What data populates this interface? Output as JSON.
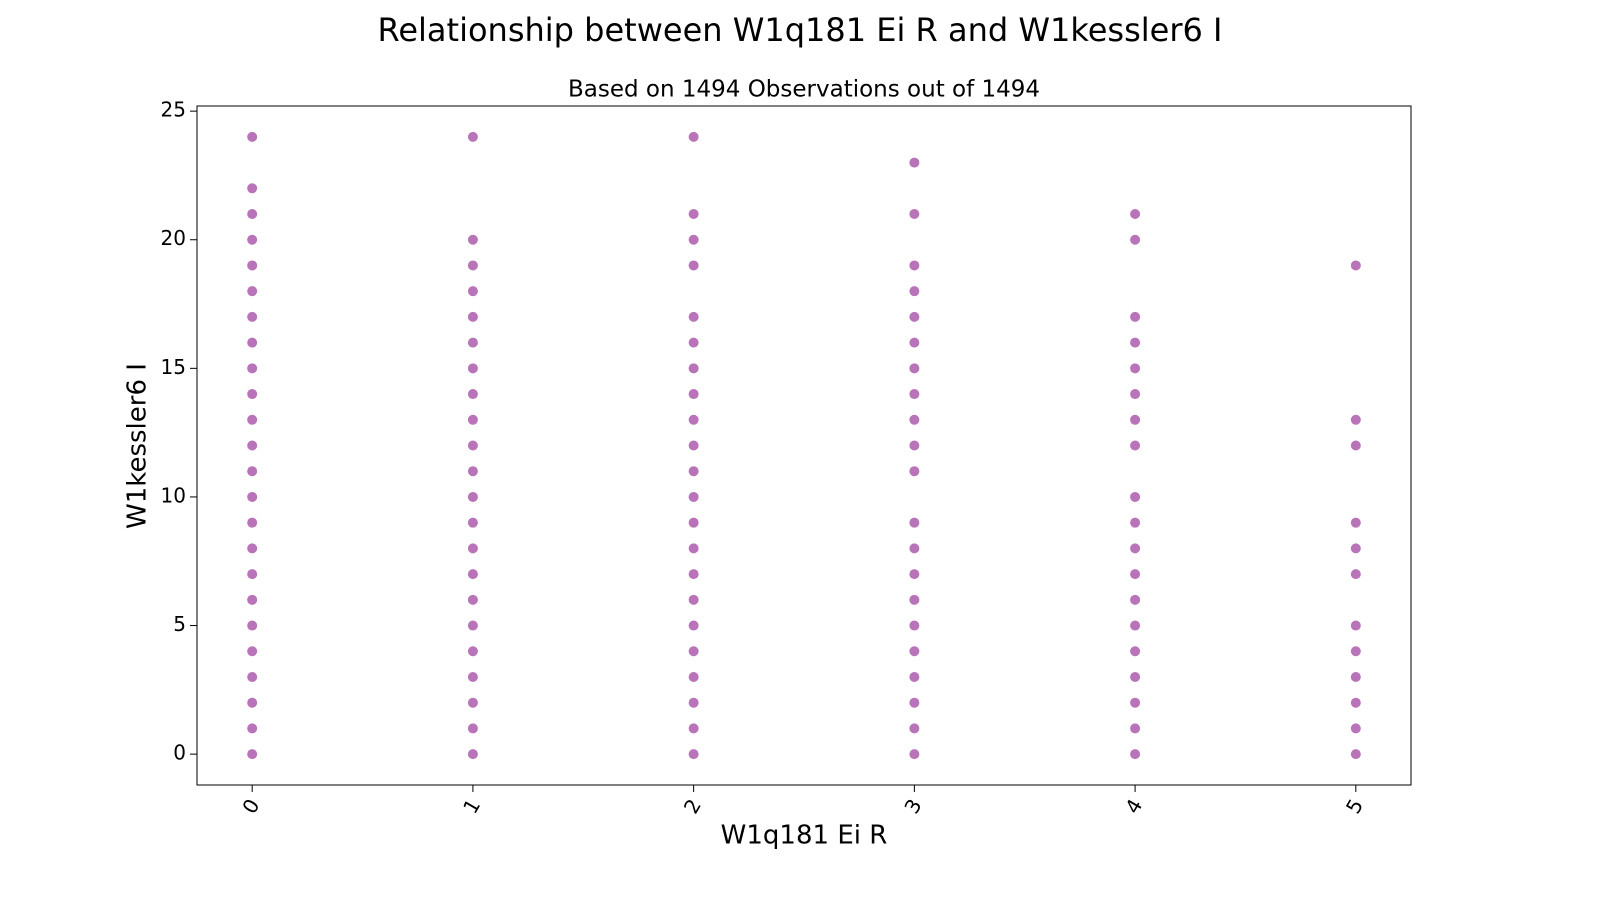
{
  "chart_data": {
    "type": "scatter",
    "title": "Relationship between W1q181 Ei R and W1kessler6 I",
    "subtitle": "Based on 1494 Observations out of 1494",
    "x_label": "W1q181 Ei R",
    "y_label": "W1kessler6 I",
    "color": "#800080",
    "x": [
      0,
      0,
      0,
      0,
      0,
      0,
      0,
      0,
      0,
      0,
      0,
      0,
      0,
      0,
      0,
      0,
      0,
      0,
      0,
      0,
      0,
      0,
      0,
      0,
      1,
      1,
      1,
      1,
      1,
      1,
      1,
      1,
      1,
      1,
      1,
      1,
      1,
      1,
      1,
      1,
      1,
      1,
      1,
      1,
      1,
      1,
      2,
      2,
      2,
      2,
      2,
      2,
      2,
      2,
      2,
      2,
      2,
      2,
      2,
      2,
      2,
      2,
      2,
      2,
      2,
      2,
      2,
      2,
      3,
      3,
      3,
      3,
      3,
      3,
      3,
      3,
      3,
      3,
      3,
      3,
      3,
      3,
      3,
      3,
      3,
      3,
      3,
      3,
      3,
      4,
      4,
      4,
      4,
      4,
      4,
      4,
      4,
      4,
      4,
      4,
      4,
      4,
      4,
      4,
      4,
      4,
      4,
      4,
      5,
      5,
      5,
      5,
      5,
      5,
      5,
      5,
      5,
      5,
      5,
      5
    ],
    "y": [
      0,
      1,
      2,
      3,
      4,
      5,
      6,
      7,
      8,
      9,
      10,
      11,
      12,
      13,
      14,
      15,
      16,
      17,
      18,
      19,
      20,
      21,
      22,
      24,
      0,
      1,
      2,
      3,
      4,
      5,
      6,
      7,
      8,
      9,
      10,
      11,
      12,
      13,
      14,
      15,
      16,
      17,
      18,
      19,
      20,
      24,
      0,
      1,
      2,
      3,
      4,
      5,
      6,
      7,
      8,
      9,
      10,
      11,
      12,
      13,
      14,
      15,
      16,
      17,
      19,
      20,
      21,
      24,
      0,
      1,
      2,
      3,
      4,
      5,
      6,
      7,
      8,
      9,
      11,
      12,
      13,
      14,
      15,
      16,
      17,
      18,
      19,
      21,
      23,
      0,
      1,
      2,
      3,
      4,
      5,
      6,
      7,
      8,
      9,
      10,
      12,
      13,
      14,
      15,
      16,
      17,
      20,
      21,
      0,
      1,
      2,
      3,
      4,
      5,
      7,
      8,
      9,
      12,
      13,
      19
    ],
    "xlim": [
      -0.25,
      5.25
    ],
    "ylim": [
      -1.2,
      25.2
    ],
    "xticks": [
      0,
      1,
      2,
      3,
      4,
      5
    ],
    "yticks": [
      0,
      5,
      10,
      15,
      20,
      25
    ]
  }
}
